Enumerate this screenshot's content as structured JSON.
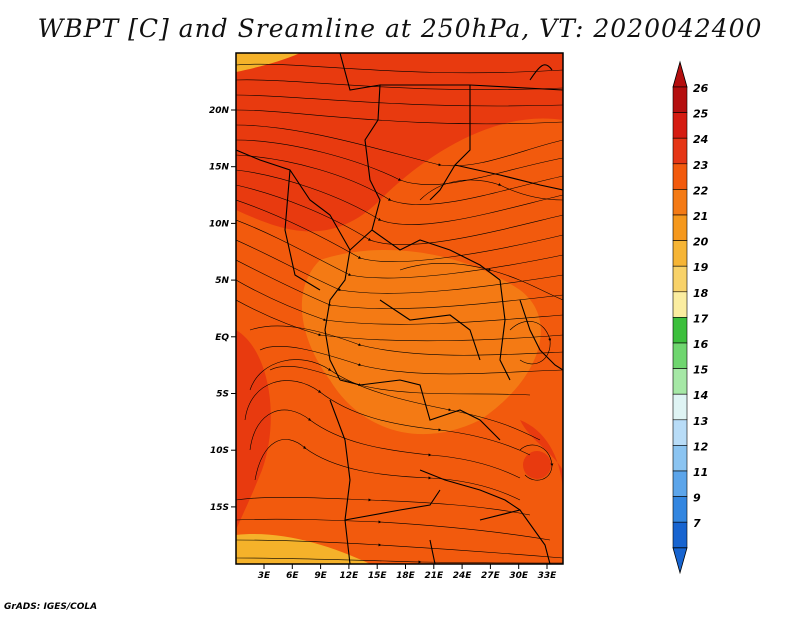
{
  "title": "WBPT [C] and Sreamline at 250hPa, VT: 2020042400",
  "credit": "GrADS: IGES/COLA",
  "map": {
    "lat_labels": [
      "20N",
      "15N",
      "10N",
      "5N",
      "EQ",
      "5S",
      "10S",
      "15S"
    ],
    "lon_labels": [
      "3E",
      "6E",
      "9E",
      "12E",
      "15E",
      "18E",
      "21E",
      "24E",
      "27E",
      "30E",
      "33E"
    ],
    "fill_colors": {
      "base": "#f25a0d",
      "warm": "#e83a0f",
      "cool": "#f47a14",
      "yellow": "#f5b22a"
    }
  },
  "colorbar": {
    "labels": [
      "26",
      "25",
      "24",
      "23",
      "22",
      "21",
      "20",
      "19",
      "18",
      "17",
      "16",
      "15",
      "14",
      "13",
      "12",
      "11",
      "9",
      "7"
    ],
    "colors": [
      "#b40f0f",
      "#d51c12",
      "#e53616",
      "#f25a0d",
      "#f47a14",
      "#f5981c",
      "#f6b536",
      "#f8d269",
      "#fbeda0",
      "#3cbf3c",
      "#6fd66f",
      "#a6e8a6",
      "#dff4f4",
      "#b8dcf7",
      "#8bc4f1",
      "#5ca5ea",
      "#3386e0",
      "#1764d0"
    ],
    "triangle_top_color": "#b40f0f",
    "triangle_bottom_color": "#1764d0"
  }
}
